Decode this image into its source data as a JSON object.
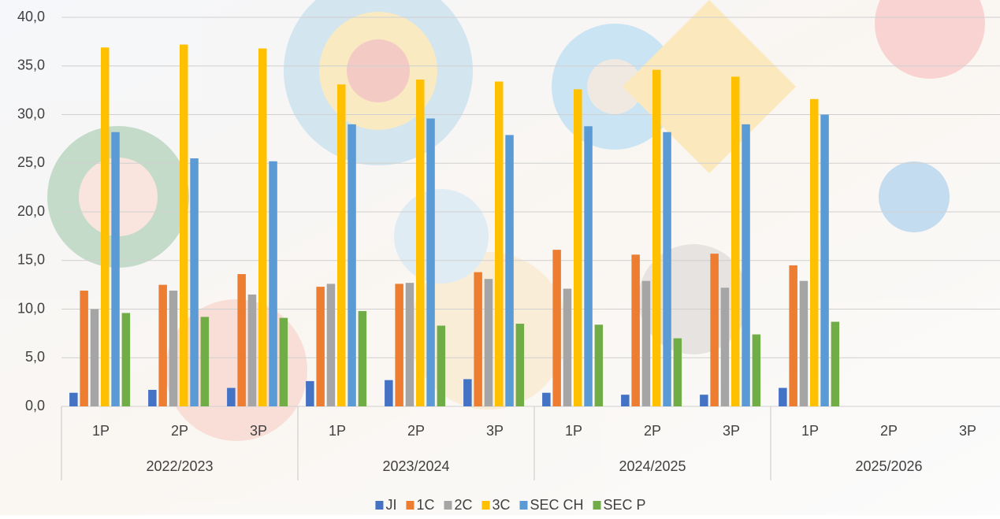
{
  "chart_data": {
    "type": "bar",
    "groups": [
      {
        "name": "2022/2023",
        "categories": [
          "1P",
          "2P",
          "3P"
        ]
      },
      {
        "name": "2023/2024",
        "categories": [
          "1P",
          "2P",
          "3P"
        ]
      },
      {
        "name": "2024/2025",
        "categories": [
          "1P",
          "2P",
          "3P"
        ]
      },
      {
        "name": "2025/2026",
        "categories": [
          "1P",
          "2P",
          "3P"
        ]
      }
    ],
    "series": [
      {
        "name": "JI",
        "color": "#4472c4",
        "values": [
          1.4,
          1.7,
          1.9,
          2.6,
          2.7,
          2.8,
          1.4,
          1.2,
          1.2,
          1.9,
          null,
          null
        ]
      },
      {
        "name": "1C",
        "color": "#ed7d31",
        "values": [
          11.9,
          12.5,
          13.6,
          12.3,
          12.6,
          13.8,
          16.1,
          15.6,
          15.7,
          14.5,
          null,
          null
        ]
      },
      {
        "name": "2C",
        "color": "#a5a5a5",
        "values": [
          10.0,
          11.9,
          11.5,
          12.6,
          12.7,
          13.1,
          12.1,
          12.9,
          12.2,
          12.9,
          null,
          null
        ]
      },
      {
        "name": "3C",
        "color": "#ffc000",
        "values": [
          36.9,
          37.2,
          36.8,
          33.1,
          33.6,
          33.4,
          32.6,
          34.6,
          33.9,
          31.6,
          null,
          null
        ]
      },
      {
        "name": "SEC CH",
        "color": "#5b9bd5",
        "values": [
          28.2,
          25.5,
          25.2,
          29.0,
          29.6,
          27.9,
          28.8,
          28.2,
          29.0,
          30.0,
          null,
          null
        ]
      },
      {
        "name": "SEC P",
        "color": "#70ad47",
        "values": [
          9.6,
          9.2,
          9.1,
          9.8,
          8.3,
          8.5,
          8.4,
          7.0,
          7.4,
          8.7,
          null,
          null
        ]
      }
    ],
    "ylim": [
      0,
      40
    ],
    "yticks": [
      {
        "value": 0,
        "label": "0,0"
      },
      {
        "value": 5,
        "label": "5,0"
      },
      {
        "value": 10,
        "label": "10,0"
      },
      {
        "value": 15,
        "label": "15,0"
      },
      {
        "value": 20,
        "label": "20,0"
      },
      {
        "value": 25,
        "label": "25,0"
      },
      {
        "value": 30,
        "label": "30,0"
      },
      {
        "value": 35,
        "label": "35,0"
      },
      {
        "value": 40,
        "label": "40,0"
      }
    ],
    "grid": true,
    "legend": "bottom"
  }
}
